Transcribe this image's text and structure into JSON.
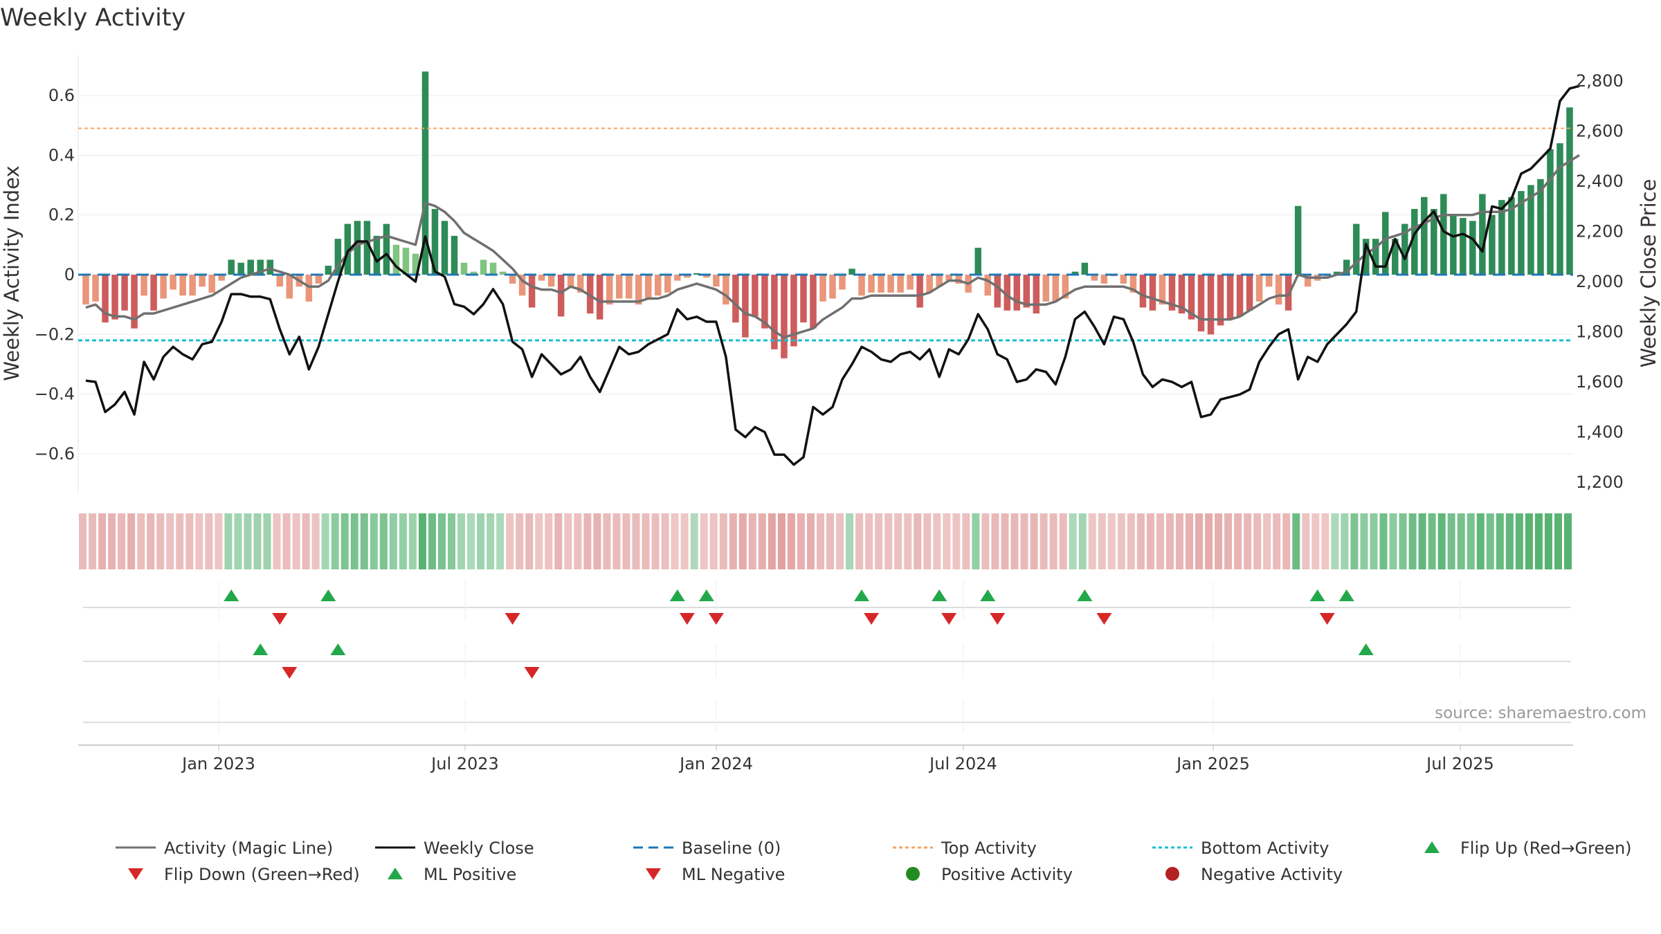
{
  "title": "Weekly Activity",
  "source": "source: sharemaestro.com",
  "colors": {
    "pos_strong": "#2e8b57",
    "pos_light": "#7fc47f",
    "neg_strong": "#cd5c5c",
    "neg_light": "#e9967a",
    "magic_line": "#707070",
    "close_line": "#111111",
    "baseline": "#1f77b4",
    "top_line": "#f4a460",
    "bottom_line": "#17becf",
    "flip_up": "#22a84a",
    "flip_down": "#d62728",
    "pos_dot": "#228b22",
    "neg_dot": "#b22222"
  },
  "chart_data": {
    "type": "bar",
    "title": "Weekly Activity",
    "ylabel": "Weekly Activity Index",
    "y2label": "Weekly Close Price",
    "ylim": [
      -0.73,
      0.75
    ],
    "y2lim": [
      1200,
      2900
    ],
    "yticks": [
      "0.6",
      "0.4",
      "0.2",
      "0",
      "−0.2",
      "−0.4",
      "−0.6"
    ],
    "y2ticks": [
      "2,800",
      "2,600",
      "2,400",
      "2,200",
      "2,000",
      "1,800",
      "1,600",
      "1,400",
      "1,200"
    ],
    "xticks": [
      "Jan 2023",
      "Jul 2023",
      "Jan 2024",
      "Jul 2024",
      "Jan 2025",
      "Jul 2025"
    ],
    "top_activity": 0.49,
    "bottom_activity": -0.22,
    "activity": [
      -0.1,
      -0.09,
      -0.16,
      -0.15,
      -0.12,
      -0.18,
      -0.07,
      -0.12,
      -0.08,
      -0.05,
      -0.07,
      -0.07,
      -0.04,
      -0.06,
      -0.02,
      0.05,
      0.04,
      0.05,
      0.05,
      0.05,
      -0.04,
      -0.08,
      -0.04,
      -0.09,
      -0.03,
      0.03,
      0.12,
      0.17,
      0.18,
      0.18,
      0.13,
      0.17,
      0.1,
      0.09,
      0.07,
      0.68,
      0.22,
      0.18,
      0.13,
      0.04,
      0.01,
      0.05,
      0.04,
      0.01,
      -0.03,
      -0.07,
      -0.11,
      -0.02,
      -0.04,
      -0.14,
      -0.04,
      -0.06,
      -0.13,
      -0.15,
      -0.1,
      -0.08,
      -0.08,
      -0.1,
      -0.08,
      -0.07,
      -0.06,
      -0.02,
      -0.01,
      0.005,
      -0.01,
      -0.04,
      -0.1,
      -0.16,
      -0.21,
      -0.14,
      -0.18,
      -0.25,
      -0.28,
      -0.24,
      -0.16,
      -0.18,
      -0.09,
      -0.08,
      -0.05,
      0.02,
      -0.07,
      -0.06,
      -0.06,
      -0.06,
      -0.06,
      -0.05,
      -0.11,
      -0.06,
      -0.04,
      -0.02,
      -0.03,
      -0.06,
      0.09,
      -0.07,
      -0.11,
      -0.12,
      -0.12,
      -0.11,
      -0.13,
      -0.09,
      -0.09,
      -0.08,
      0.01,
      0.04,
      -0.02,
      -0.03,
      -0.005,
      -0.03,
      -0.06,
      -0.11,
      -0.12,
      -0.1,
      -0.12,
      -0.13,
      -0.15,
      -0.19,
      -0.2,
      -0.17,
      -0.15,
      -0.14,
      -0.12,
      -0.09,
      -0.04,
      -0.1,
      -0.12,
      0.23,
      -0.04,
      -0.02,
      -0.005,
      0.01,
      0.05,
      0.17,
      0.12,
      0.12,
      0.21,
      0.12,
      0.17,
      0.22,
      0.26,
      0.22,
      0.27,
      0.2,
      0.19,
      0.18,
      0.27,
      0.2,
      0.25,
      0.26,
      0.28,
      0.3,
      0.32,
      0.42,
      0.44,
      0.56
    ],
    "magic_line": [
      -0.11,
      -0.1,
      -0.13,
      -0.14,
      -0.14,
      -0.15,
      -0.13,
      -0.13,
      -0.12,
      -0.11,
      -0.1,
      -0.09,
      -0.08,
      -0.07,
      -0.05,
      -0.03,
      -0.01,
      0.0,
      0.01,
      0.02,
      0.01,
      0.0,
      -0.02,
      -0.04,
      -0.04,
      -0.02,
      0.03,
      0.07,
      0.1,
      0.11,
      0.12,
      0.13,
      0.12,
      0.11,
      0.1,
      0.24,
      0.23,
      0.21,
      0.18,
      0.14,
      0.12,
      0.1,
      0.08,
      0.05,
      0.02,
      -0.02,
      -0.04,
      -0.05,
      -0.05,
      -0.06,
      -0.04,
      -0.05,
      -0.07,
      -0.09,
      -0.09,
      -0.09,
      -0.09,
      -0.09,
      -0.08,
      -0.08,
      -0.07,
      -0.05,
      -0.04,
      -0.03,
      -0.04,
      -0.05,
      -0.07,
      -0.1,
      -0.13,
      -0.14,
      -0.16,
      -0.19,
      -0.21,
      -0.2,
      -0.19,
      -0.18,
      -0.15,
      -0.13,
      -0.11,
      -0.08,
      -0.08,
      -0.07,
      -0.07,
      -0.07,
      -0.07,
      -0.07,
      -0.07,
      -0.06,
      -0.04,
      -0.02,
      -0.02,
      -0.03,
      -0.01,
      -0.02,
      -0.04,
      -0.07,
      -0.09,
      -0.1,
      -0.1,
      -0.1,
      -0.09,
      -0.07,
      -0.05,
      -0.04,
      -0.04,
      -0.04,
      -0.04,
      -0.04,
      -0.05,
      -0.07,
      -0.08,
      -0.09,
      -0.1,
      -0.11,
      -0.13,
      -0.15,
      -0.15,
      -0.15,
      -0.15,
      -0.14,
      -0.12,
      -0.1,
      -0.08,
      -0.07,
      -0.07,
      0.0,
      -0.01,
      -0.01,
      -0.01,
      0.0,
      0.01,
      0.04,
      0.07,
      0.09,
      0.12,
      0.13,
      0.14,
      0.16,
      0.17,
      0.19,
      0.2,
      0.2,
      0.2,
      0.2,
      0.21,
      0.21,
      0.21,
      0.22,
      0.24,
      0.26,
      0.28,
      0.32,
      0.36,
      0.38,
      0.4
    ],
    "weekly_close": [
      1605,
      1600,
      1480,
      1510,
      1560,
      1470,
      1680,
      1610,
      1700,
      1740,
      1710,
      1690,
      1750,
      1760,
      1840,
      1950,
      1950,
      1940,
      1940,
      1930,
      1810,
      1710,
      1780,
      1650,
      1740,
      1870,
      2000,
      2120,
      2160,
      2160,
      2080,
      2110,
      2060,
      2030,
      2000,
      2180,
      2040,
      2020,
      1910,
      1900,
      1870,
      1910,
      1970,
      1910,
      1760,
      1730,
      1620,
      1710,
      1670,
      1630,
      1650,
      1700,
      1620,
      1560,
      1650,
      1740,
      1710,
      1720,
      1750,
      1770,
      1790,
      1890,
      1850,
      1860,
      1840,
      1840,
      1700,
      1410,
      1380,
      1420,
      1400,
      1310,
      1310,
      1270,
      1300,
      1500,
      1470,
      1500,
      1610,
      1670,
      1740,
      1720,
      1690,
      1680,
      1710,
      1720,
      1690,
      1730,
      1620,
      1730,
      1710,
      1770,
      1870,
      1810,
      1710,
      1690,
      1600,
      1610,
      1650,
      1640,
      1590,
      1700,
      1850,
      1880,
      1820,
      1750,
      1860,
      1850,
      1760,
      1630,
      1580,
      1610,
      1600,
      1580,
      1600,
      1460,
      1470,
      1530,
      1540,
      1550,
      1570,
      1680,
      1740,
      1790,
      1810,
      1610,
      1700,
      1680,
      1750,
      1790,
      1830,
      1880,
      2150,
      2060,
      2060,
      2170,
      2090,
      2190,
      2240,
      2280,
      2200,
      2180,
      2190,
      2170,
      2120,
      2300,
      2290,
      2330,
      2430,
      2450,
      2490,
      2530,
      2720,
      2770,
      2780
    ],
    "flips_up": [
      15,
      25,
      61,
      64,
      80,
      88,
      93,
      103,
      127,
      130
    ],
    "flips_down": [
      20,
      44,
      62,
      65,
      81,
      89,
      94,
      105,
      128
    ],
    "ml_positive": [
      18,
      26,
      132
    ],
    "ml_negative": [
      21,
      46
    ],
    "legend": [
      "Activity (Magic Line)",
      "Weekly Close",
      "Baseline (0)",
      "Top Activity",
      "Bottom Activity",
      "Flip Up (Red→Green)",
      "Flip Down (Green→Red)",
      "ML Positive",
      "ML Negative",
      "Positive Activity",
      "Negative Activity"
    ]
  }
}
